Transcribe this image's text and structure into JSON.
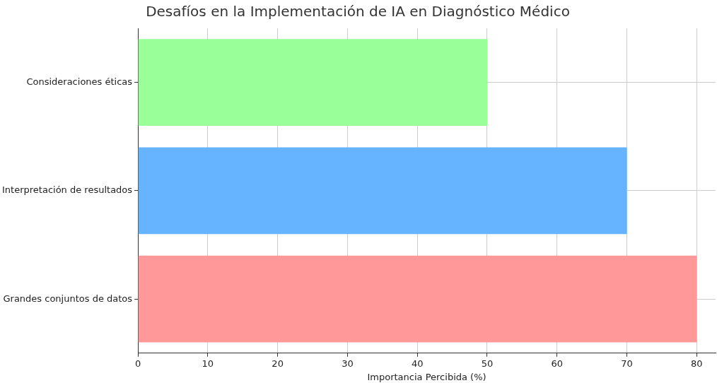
{
  "chart_data": {
    "type": "bar",
    "orientation": "horizontal",
    "title": "Desafíos en la Implementación de IA en Diagnóstico Médico",
    "xlabel": "Importancia Percibida (%)",
    "categories": [
      "Consideraciones éticas",
      "Interpretación de resultados",
      "Grandes conjuntos de datos"
    ],
    "values": [
      50,
      70,
      80
    ],
    "colors": [
      "#99ff99",
      "#66b3ff",
      "#ff9999"
    ],
    "xlim": [
      0,
      82.7
    ],
    "xticks": [
      0,
      10,
      20,
      30,
      40,
      50,
      60,
      70,
      80
    ],
    "grid": true
  }
}
